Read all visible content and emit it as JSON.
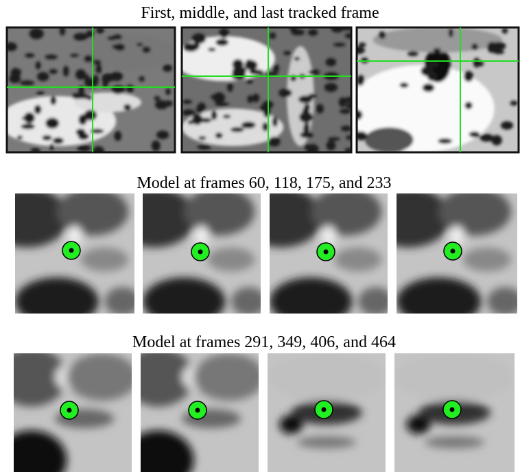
{
  "titles": [
    "First, middle, and last tracked frame",
    "Model at frames 60, 118, 175, and 233",
    "Model at frames 291, 349, 406, and 464"
  ]
}
